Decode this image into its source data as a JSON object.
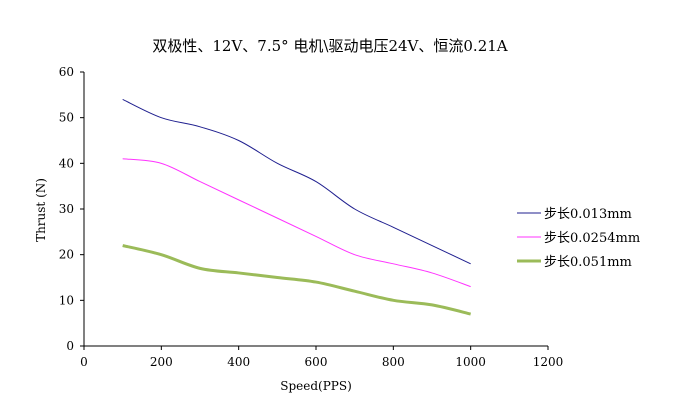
{
  "chart_data": {
    "type": "line",
    "title": "双极性、12V、7.5° 电机\\驱动电压24V、恒流0.21A",
    "xlabel": "Speed(PPS)",
    "ylabel": "Thrust (N)",
    "xlim": [
      0,
      1200
    ],
    "ylim": [
      0,
      60
    ],
    "xticks": [
      0,
      200,
      400,
      600,
      800,
      1000,
      1200
    ],
    "yticks": [
      0,
      10,
      20,
      30,
      40,
      50,
      60
    ],
    "grid": false,
    "legend_placement": "right",
    "x": [
      100,
      200,
      300,
      400,
      500,
      600,
      700,
      800,
      900,
      1000
    ],
    "series": [
      {
        "name": "步长0.013mm",
        "color": "#1f1f8f",
        "values": [
          54,
          50,
          48,
          45,
          40,
          36,
          30,
          26,
          22,
          18
        ]
      },
      {
        "name": "步长0.0254mm",
        "color": "#ff33ff",
        "values": [
          41,
          40,
          36,
          32,
          28,
          24,
          20,
          18,
          16,
          13
        ]
      },
      {
        "name": "步长0.051mm",
        "color": "#9bbb59",
        "values": [
          22,
          20,
          17,
          16,
          15,
          14,
          12,
          10,
          9,
          7
        ]
      }
    ]
  }
}
